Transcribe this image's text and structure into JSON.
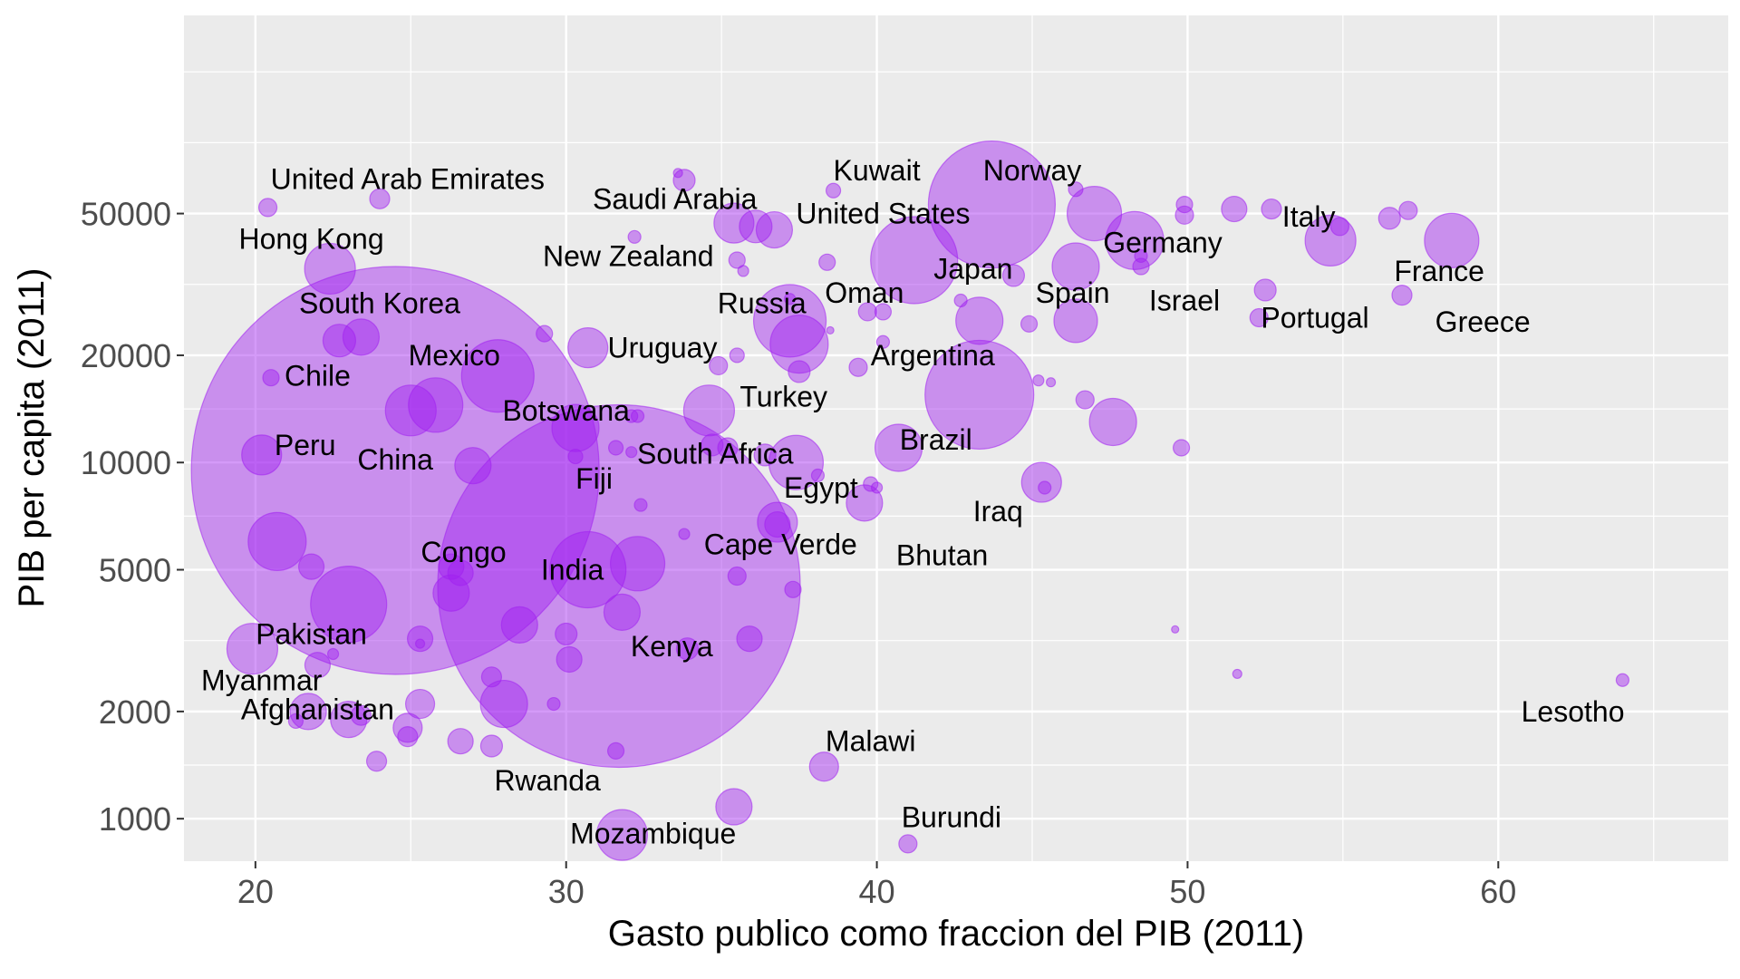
{
  "chart_data": {
    "type": "scatter",
    "xlabel": "Gasto publico como fraccion del PIB (2011)",
    "ylabel": "PIB per capita (2011)",
    "xlim": [
      17.7,
      67.4
    ],
    "ylim": [
      760,
      180000
    ],
    "y_scale": "log",
    "x_ticks": [
      "20",
      "30",
      "40",
      "50",
      "60"
    ],
    "y_ticks": [
      "1000",
      "2000",
      "5000",
      "10000",
      "20000",
      "50000"
    ],
    "grid": true,
    "legend": "none",
    "colors": {
      "panel": "#ebebeb",
      "grid": "#ffffff",
      "point_fill": "#a020f0",
      "point_alpha": 0.45,
      "tick": "#333333"
    },
    "points": [
      {
        "x": 24.5,
        "y": 9500,
        "size": 225
      },
      {
        "x": 31.7,
        "y": 4500,
        "size": 200
      },
      {
        "x": 43.7,
        "y": 53000,
        "size": 70
      },
      {
        "x": 43.3,
        "y": 15500,
        "size": 60
      },
      {
        "x": 36.1,
        "y": 46000,
        "size": 18
      },
      {
        "x": 41.2,
        "y": 37000,
        "size": 48
      },
      {
        "x": 37.2,
        "y": 25000,
        "size": 40
      },
      {
        "x": 37.5,
        "y": 21500,
        "size": 32
      },
      {
        "x": 23.0,
        "y": 4000,
        "size": 42
      },
      {
        "x": 27.8,
        "y": 17500,
        "size": 40
      },
      {
        "x": 30.7,
        "y": 5000,
        "size": 42
      },
      {
        "x": 32.3,
        "y": 5200,
        "size": 30
      },
      {
        "x": 31.8,
        "y": 3800,
        "size": 20
      },
      {
        "x": 25.0,
        "y": 14000,
        "size": 28
      },
      {
        "x": 25.8,
        "y": 14500,
        "size": 30
      },
      {
        "x": 20.7,
        "y": 6000,
        "size": 32
      },
      {
        "x": 36.8,
        "y": 6800,
        "size": 22
      },
      {
        "x": 37.4,
        "y": 10000,
        "size": 30
      },
      {
        "x": 34.6,
        "y": 14000,
        "size": 28
      },
      {
        "x": 47.0,
        "y": 50000,
        "size": 30
      },
      {
        "x": 48.3,
        "y": 42000,
        "size": 32
      },
      {
        "x": 54.6,
        "y": 42000,
        "size": 28
      },
      {
        "x": 58.5,
        "y": 42000,
        "size": 30
      },
      {
        "x": 46.4,
        "y": 35500,
        "size": 26
      },
      {
        "x": 43.3,
        "y": 25000,
        "size": 26
      },
      {
        "x": 46.4,
        "y": 25000,
        "size": 24
      },
      {
        "x": 47.6,
        "y": 13000,
        "size": 26
      },
      {
        "x": 40.7,
        "y": 11000,
        "size": 26
      },
      {
        "x": 45.3,
        "y": 8800,
        "size": 22
      },
      {
        "x": 39.6,
        "y": 7700,
        "size": 20
      },
      {
        "x": 20.2,
        "y": 10500,
        "size": 22
      },
      {
        "x": 27.0,
        "y": 9800,
        "size": 20
      },
      {
        "x": 19.9,
        "y": 3000,
        "size": 28
      },
      {
        "x": 22.4,
        "y": 35000,
        "size": 28
      },
      {
        "x": 30.7,
        "y": 21000,
        "size": 22
      },
      {
        "x": 30.3,
        "y": 12500,
        "size": 26
      },
      {
        "x": 35.4,
        "y": 47000,
        "size": 22
      },
      {
        "x": 36.7,
        "y": 45000,
        "size": 20
      },
      {
        "x": 23.4,
        "y": 22500,
        "size": 20
      },
      {
        "x": 22.7,
        "y": 22000,
        "size": 18
      },
      {
        "x": 28.0,
        "y": 2100,
        "size": 26
      },
      {
        "x": 26.3,
        "y": 4300,
        "size": 20
      },
      {
        "x": 28.5,
        "y": 3500,
        "size": 20
      },
      {
        "x": 21.7,
        "y": 2000,
        "size": 20
      },
      {
        "x": 23.0,
        "y": 1900,
        "size": 20
      },
      {
        "x": 31.8,
        "y": 900,
        "size": 28
      },
      {
        "x": 35.4,
        "y": 1080,
        "size": 20
      },
      {
        "x": 38.3,
        "y": 1400,
        "size": 16
      },
      {
        "x": 22.0,
        "y": 2700,
        "size": 14
      },
      {
        "x": 21.8,
        "y": 5100,
        "size": 14
      },
      {
        "x": 26.3,
        "y": 5100,
        "size": 14
      },
      {
        "x": 26.6,
        "y": 4900,
        "size": 14
      },
      {
        "x": 25.3,
        "y": 3200,
        "size": 14
      },
      {
        "x": 25.3,
        "y": 2100,
        "size": 16
      },
      {
        "x": 24.9,
        "y": 1800,
        "size": 16
      },
      {
        "x": 26.6,
        "y": 1650,
        "size": 14
      },
      {
        "x": 27.6,
        "y": 1600,
        "size": 12
      },
      {
        "x": 23.9,
        "y": 1450,
        "size": 11
      },
      {
        "x": 24.9,
        "y": 1700,
        "size": 11
      },
      {
        "x": 23.4,
        "y": 1950,
        "size": 11
      },
      {
        "x": 21.3,
        "y": 1880,
        "size": 8
      },
      {
        "x": 30.0,
        "y": 3300,
        "size": 12
      },
      {
        "x": 30.1,
        "y": 2800,
        "size": 14
      },
      {
        "x": 27.6,
        "y": 2500,
        "size": 11
      },
      {
        "x": 29.6,
        "y": 2100,
        "size": 7
      },
      {
        "x": 31.6,
        "y": 1550,
        "size": 9
      },
      {
        "x": 33.9,
        "y": 3000,
        "size": 12
      },
      {
        "x": 35.9,
        "y": 3200,
        "size": 14
      },
      {
        "x": 37.3,
        "y": 4400,
        "size": 9
      },
      {
        "x": 35.5,
        "y": 4800,
        "size": 10
      },
      {
        "x": 36.8,
        "y": 6700,
        "size": 14
      },
      {
        "x": 33.8,
        "y": 6300,
        "size": 6
      },
      {
        "x": 32.4,
        "y": 7600,
        "size": 7
      },
      {
        "x": 34.7,
        "y": 11200,
        "size": 12
      },
      {
        "x": 35.2,
        "y": 11000,
        "size": 11
      },
      {
        "x": 36.4,
        "y": 10500,
        "size": 12
      },
      {
        "x": 32.1,
        "y": 10700,
        "size": 6
      },
      {
        "x": 31.6,
        "y": 11000,
        "size": 8
      },
      {
        "x": 30.3,
        "y": 10400,
        "size": 8
      },
      {
        "x": 32.1,
        "y": 13500,
        "size": 7
      },
      {
        "x": 32.3,
        "y": 13500,
        "size": 7
      },
      {
        "x": 34.9,
        "y": 18700,
        "size": 10
      },
      {
        "x": 35.5,
        "y": 20000,
        "size": 8
      },
      {
        "x": 37.5,
        "y": 18000,
        "size": 12
      },
      {
        "x": 39.4,
        "y": 18500,
        "size": 10
      },
      {
        "x": 40.2,
        "y": 21800,
        "size": 7
      },
      {
        "x": 29.3,
        "y": 23000,
        "size": 9
      },
      {
        "x": 20.5,
        "y": 17300,
        "size": 9
      },
      {
        "x": 39.7,
        "y": 26500,
        "size": 10
      },
      {
        "x": 40.2,
        "y": 26500,
        "size": 9
      },
      {
        "x": 42.7,
        "y": 28500,
        "size": 7
      },
      {
        "x": 44.9,
        "y": 24500,
        "size": 9
      },
      {
        "x": 38.5,
        "y": 23500,
        "size": 4
      },
      {
        "x": 37.2,
        "y": 28800,
        "size": 6
      },
      {
        "x": 38.4,
        "y": 36500,
        "size": 9
      },
      {
        "x": 35.7,
        "y": 34500,
        "size": 6
      },
      {
        "x": 35.5,
        "y": 37000,
        "size": 9
      },
      {
        "x": 33.8,
        "y": 62000,
        "size": 12
      },
      {
        "x": 33.6,
        "y": 65000,
        "size": 5
      },
      {
        "x": 38.6,
        "y": 58000,
        "size": 8
      },
      {
        "x": 32.2,
        "y": 43000,
        "size": 7
      },
      {
        "x": 24.0,
        "y": 55000,
        "size": 11
      },
      {
        "x": 20.4,
        "y": 52000,
        "size": 10
      },
      {
        "x": 46.4,
        "y": 58500,
        "size": 8
      },
      {
        "x": 44.4,
        "y": 33500,
        "size": 12
      },
      {
        "x": 48.5,
        "y": 35500,
        "size": 9
      },
      {
        "x": 48.5,
        "y": 38000,
        "size": 7
      },
      {
        "x": 49.9,
        "y": 49500,
        "size": 10
      },
      {
        "x": 49.9,
        "y": 53000,
        "size": 9
      },
      {
        "x": 51.5,
        "y": 51500,
        "size": 14
      },
      {
        "x": 52.7,
        "y": 51500,
        "size": 11
      },
      {
        "x": 54.9,
        "y": 46000,
        "size": 10
      },
      {
        "x": 56.5,
        "y": 48500,
        "size": 12
      },
      {
        "x": 57.1,
        "y": 51000,
        "size": 10
      },
      {
        "x": 52.5,
        "y": 30500,
        "size": 12
      },
      {
        "x": 52.3,
        "y": 25500,
        "size": 10
      },
      {
        "x": 56.9,
        "y": 29500,
        "size": 11
      },
      {
        "x": 45.2,
        "y": 17000,
        "size": 6
      },
      {
        "x": 45.6,
        "y": 16800,
        "size": 5
      },
      {
        "x": 46.7,
        "y": 15000,
        "size": 10
      },
      {
        "x": 49.8,
        "y": 11000,
        "size": 9
      },
      {
        "x": 39.8,
        "y": 8700,
        "size": 8
      },
      {
        "x": 38.1,
        "y": 9200,
        "size": 7
      },
      {
        "x": 40.0,
        "y": 8500,
        "size": 6
      },
      {
        "x": 45.4,
        "y": 8500,
        "size": 7
      },
      {
        "x": 49.6,
        "y": 3400,
        "size": 4
      },
      {
        "x": 51.6,
        "y": 2550,
        "size": 5
      },
      {
        "x": 64.0,
        "y": 2450,
        "size": 7
      },
      {
        "x": 41.0,
        "y": 850,
        "size": 10
      },
      {
        "x": 22.5,
        "y": 2900,
        "size": 6
      },
      {
        "x": 25.3,
        "y": 3100,
        "size": 5
      }
    ],
    "labels": [
      {
        "text": "United Arab Emirates",
        "x": 24.9,
        "y": 62500
      },
      {
        "text": "Hong Kong",
        "x": 21.8,
        "y": 42500
      },
      {
        "text": "South Korea",
        "x": 24.0,
        "y": 28000
      },
      {
        "text": "Chile",
        "x": 22.0,
        "y": 17500
      },
      {
        "text": "Mexico",
        "x": 26.4,
        "y": 20000
      },
      {
        "text": "Botswana",
        "x": 30.0,
        "y": 14000
      },
      {
        "text": "Peru",
        "x": 21.6,
        "y": 11200
      },
      {
        "text": "China",
        "x": 24.5,
        "y": 10200
      },
      {
        "text": "Congo",
        "x": 26.7,
        "y": 5600
      },
      {
        "text": "India",
        "x": 30.2,
        "y": 5000
      },
      {
        "text": "Pakistan",
        "x": 21.8,
        "y": 3300
      },
      {
        "text": "Myanmar",
        "x": 20.2,
        "y": 2450
      },
      {
        "text": "Afghanistan",
        "x": 22.0,
        "y": 2030
      },
      {
        "text": "Rwanda",
        "x": 29.4,
        "y": 1280
      },
      {
        "text": "Mozambique",
        "x": 32.8,
        "y": 910
      },
      {
        "text": "Kenya",
        "x": 33.4,
        "y": 3050
      },
      {
        "text": "Fiji",
        "x": 30.9,
        "y": 9000
      },
      {
        "text": "South Africa",
        "x": 34.8,
        "y": 10600
      },
      {
        "text": "Cape Verde",
        "x": 36.9,
        "y": 5900
      },
      {
        "text": "Uruguay",
        "x": 33.1,
        "y": 21000
      },
      {
        "text": "Saudi Arabia",
        "x": 33.5,
        "y": 55000
      },
      {
        "text": "New Zealand",
        "x": 32.0,
        "y": 38000
      },
      {
        "text": "Russia",
        "x": 36.3,
        "y": 28000
      },
      {
        "text": "Turkey",
        "x": 37.0,
        "y": 15300
      },
      {
        "text": "Egypt",
        "x": 38.2,
        "y": 8500
      },
      {
        "text": "Kuwait",
        "x": 40.0,
        "y": 66000
      },
      {
        "text": "United States",
        "x": 40.2,
        "y": 50000
      },
      {
        "text": "Oman",
        "x": 39.6,
        "y": 30000
      },
      {
        "text": "Argentina",
        "x": 41.8,
        "y": 20000
      },
      {
        "text": "Brazil",
        "x": 41.9,
        "y": 11600
      },
      {
        "text": "Bhutan",
        "x": 42.1,
        "y": 5500
      },
      {
        "text": "Iraq",
        "x": 43.9,
        "y": 7300
      },
      {
        "text": "Norway",
        "x": 45.0,
        "y": 66000
      },
      {
        "text": "Japan",
        "x": 43.1,
        "y": 35000
      },
      {
        "text": "Spain",
        "x": 46.3,
        "y": 30000
      },
      {
        "text": "Germany",
        "x": 49.2,
        "y": 41500
      },
      {
        "text": "Israel",
        "x": 49.9,
        "y": 28500
      },
      {
        "text": "Italy",
        "x": 53.9,
        "y": 49000
      },
      {
        "text": "Portugal",
        "x": 54.1,
        "y": 25500
      },
      {
        "text": "France",
        "x": 58.1,
        "y": 34500
      },
      {
        "text": "Greece",
        "x": 59.5,
        "y": 24800
      },
      {
        "text": "Malawi",
        "x": 39.8,
        "y": 1650
      },
      {
        "text": "Burundi",
        "x": 42.4,
        "y": 1010
      },
      {
        "text": "Lesotho",
        "x": 62.4,
        "y": 2000
      }
    ]
  }
}
